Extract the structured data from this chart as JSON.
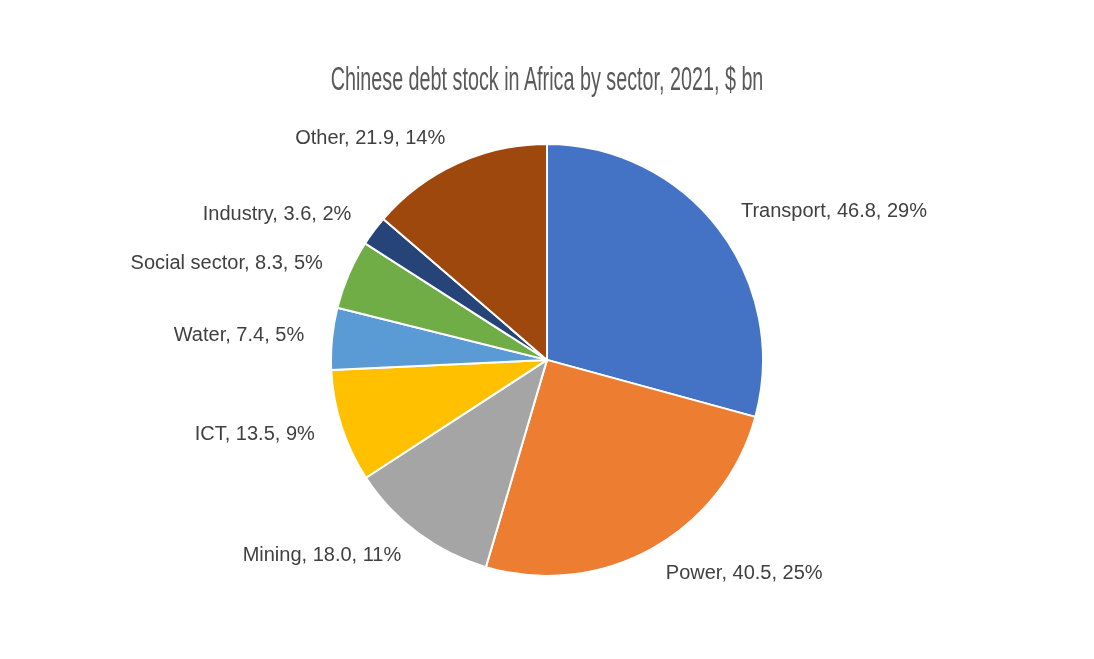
{
  "chart_data": {
    "type": "pie",
    "title": "Chinese debt stock in Africa by sector, 2021, $ bn",
    "categories": [
      "Transport",
      "Power",
      "Mining",
      "ICT",
      "Water",
      "Social sector",
      "Industry",
      "Other"
    ],
    "values": [
      46.8,
      40.5,
      18.0,
      13.5,
      7.4,
      8.3,
      3.6,
      21.9
    ],
    "value_labels": [
      "46.8, 29%",
      "40.5, 25%",
      "18.0, 11%",
      "13.5, 9%",
      "7.4, 5%",
      "8.3, 5%",
      "3.6, 2%",
      "21.9, 14%"
    ],
    "colors": [
      "#4472c4",
      "#ed7d31",
      "#a5a5a5",
      "#ffc000",
      "#5b9bd5",
      "#70ad47",
      "#264478",
      "#9e480e"
    ],
    "legend": false
  }
}
